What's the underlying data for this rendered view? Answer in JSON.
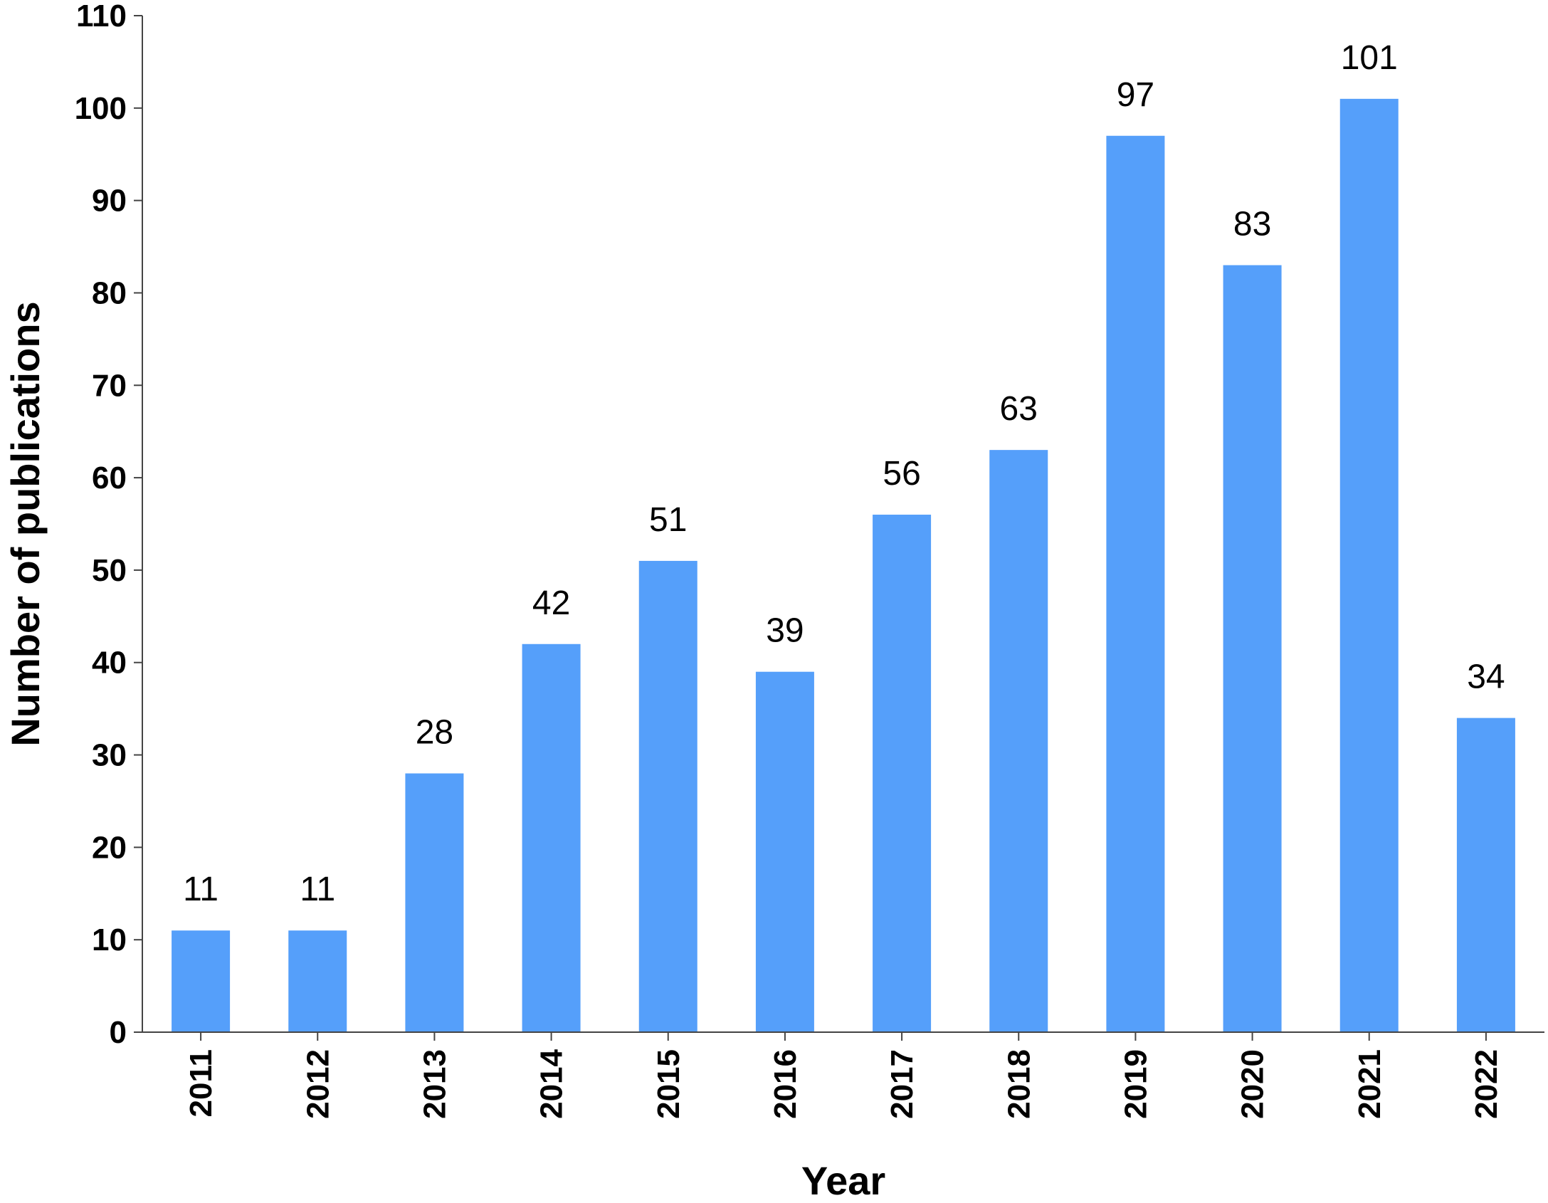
{
  "chart_data": {
    "type": "bar",
    "categories": [
      "2011",
      "2012",
      "2013",
      "2014",
      "2015",
      "2016",
      "2017",
      "2018",
      "2019",
      "2020",
      "2021",
      "2022"
    ],
    "values": [
      11,
      11,
      28,
      42,
      51,
      39,
      56,
      63,
      97,
      83,
      101,
      34
    ],
    "data_labels": [
      "11",
      "11",
      "28",
      "42",
      "51",
      "39",
      "56",
      "63",
      "97",
      "83",
      "101",
      "34"
    ],
    "xlabel": "Year",
    "ylabel": "Number of publications",
    "ylim": [
      0,
      110
    ],
    "yticks": [
      "0",
      "10",
      "20",
      "30",
      "40",
      "50",
      "60",
      "70",
      "80",
      "90",
      "100",
      "110"
    ],
    "bar_color": "#559ffa",
    "grid": false
  }
}
